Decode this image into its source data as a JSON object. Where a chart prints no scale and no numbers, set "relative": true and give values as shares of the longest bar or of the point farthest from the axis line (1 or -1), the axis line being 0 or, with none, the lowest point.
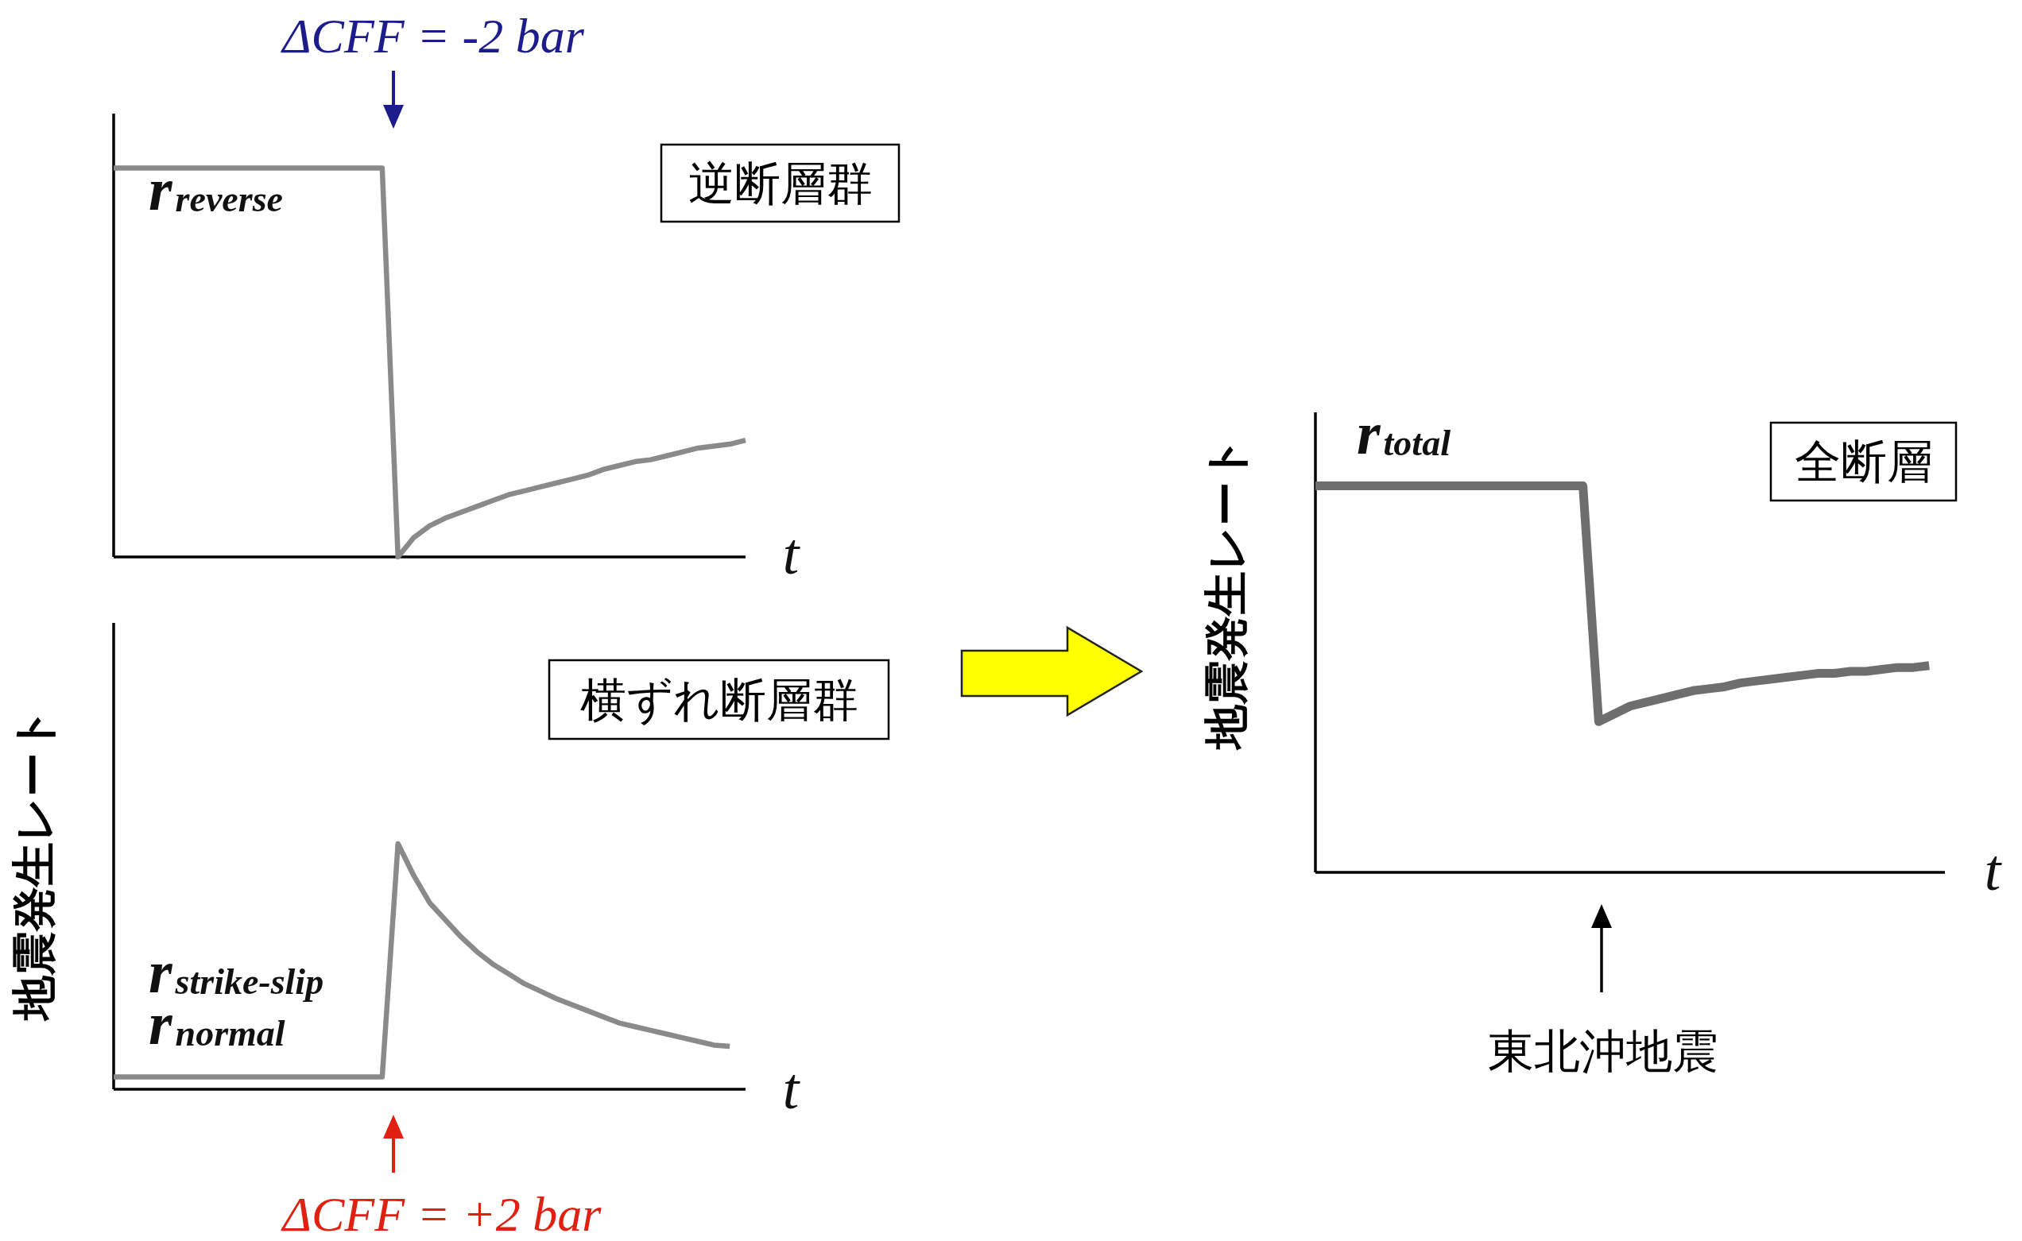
{
  "chart_data": [
    {
      "type": "line",
      "relative": true,
      "xlabel": "t",
      "categories": [
        null,
        null,
        null,
        null,
        null,
        null,
        null,
        null,
        null,
        null,
        null,
        null,
        null,
        null,
        null,
        null,
        null,
        null,
        null,
        null,
        null,
        null,
        null,
        null,
        null,
        null,
        null,
        null,
        null,
        null,
        null,
        null,
        null,
        null,
        null,
        null,
        null,
        null,
        null,
        null,
        null
      ],
      "series": [
        {
          "color": "#8a8a8a",
          "values": [
            1,
            1,
            1,
            1,
            1,
            1,
            1,
            1,
            1,
            1,
            1,
            1,
            1,
            1,
            1,
            1,
            1,
            1,
            0,
            0.05,
            0.08,
            0.1,
            0.115,
            0.13,
            0.145,
            0.16,
            0.17,
            0.18,
            0.19,
            0.2,
            0.21,
            0.225,
            0.235,
            0.245,
            0.25,
            0.26,
            0.27,
            0.28,
            0.285,
            0.29,
            0.3
          ]
        }
      ],
      "annotations": [
        "ΔCFF = -2 bar",
        "r$_{reverse}$",
        "逆断層群"
      ]
    },
    {
      "type": "line",
      "relative": true,
      "xlabel": "t",
      "ylabel": "地震発生レート",
      "categories": [
        null,
        null,
        null,
        null,
        null,
        null,
        null,
        null,
        null,
        null,
        null,
        null,
        null,
        null,
        null,
        null,
        null,
        null,
        null,
        null,
        null,
        null,
        null,
        null,
        null,
        null,
        null,
        null,
        null,
        null,
        null,
        null,
        null,
        null,
        null,
        null,
        null,
        null,
        null,
        null,
        null
      ],
      "series": [
        {
          "color": "#8a8a8a",
          "values": [
            0.05,
            0.05,
            0.05,
            0.05,
            0.05,
            0.05,
            0.05,
            0.05,
            0.05,
            0.05,
            0.05,
            0.05,
            0.05,
            0.05,
            0.05,
            0.05,
            0.05,
            0.05,
            1,
            0.87,
            0.76,
            0.69,
            0.62,
            0.56,
            0.51,
            0.47,
            0.43,
            0.4,
            0.37,
            0.345,
            0.32,
            0.295,
            0.27,
            0.255,
            0.24,
            0.225,
            0.21,
            0.195,
            0.18,
            0.175,
            null
          ]
        }
      ],
      "annotations": [
        "横ずれ断層群",
        "r$_{strike-slip}$",
        "r$_{normal}$",
        "ΔCFF = +2 bar"
      ]
    },
    {
      "type": "line",
      "relative": true,
      "xlabel": "t",
      "ylabel": "地震発生レート",
      "categories": [
        null,
        null,
        null,
        null,
        null,
        null,
        null,
        null,
        null,
        null,
        null,
        null,
        null,
        null,
        null,
        null,
        null,
        null,
        null,
        null,
        null,
        null,
        null,
        null,
        null,
        null,
        null,
        null,
        null,
        null,
        null,
        null,
        null,
        null,
        null,
        null,
        null,
        null,
        null,
        null,
        null
      ],
      "series": [
        {
          "color": "#6e6e6e",
          "values": [
            1,
            1,
            1,
            1,
            1,
            1,
            1,
            1,
            1,
            1,
            1,
            1,
            1,
            1,
            1,
            1,
            1,
            1,
            0.39,
            0.41,
            0.43,
            0.44,
            0.45,
            0.46,
            0.47,
            0.475,
            0.48,
            0.49,
            0.495,
            0.5,
            0.505,
            0.51,
            0.515,
            0.515,
            0.52,
            0.52,
            0.525,
            0.53,
            0.53,
            0.535,
            null
          ]
        }
      ],
      "annotations": [
        "r$_{total}$",
        "全断層",
        "東北沖地震"
      ]
    }
  ]
}
